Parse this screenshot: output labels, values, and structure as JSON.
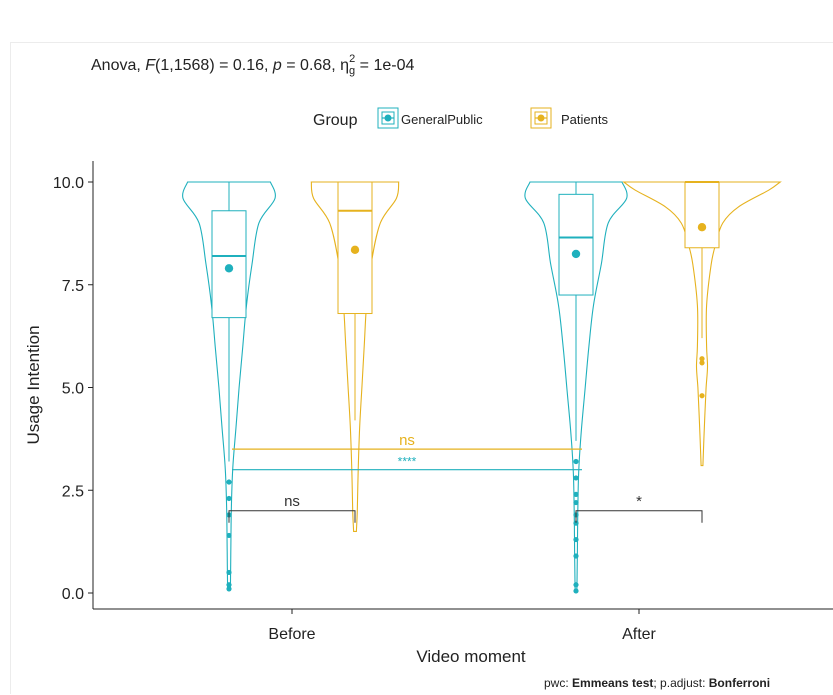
{
  "subtitle": {
    "prefix": "Anova, ",
    "F": "F",
    "df": "(1,1568) = 0.16, ",
    "p": "p",
    "pval": " = 0.68, ",
    "eta": "η",
    "eta_sub": "g",
    "eta_sup": "2",
    "eta_val": " = 1e-04"
  },
  "caption": {
    "prefix": "pwc: ",
    "method": "Emmeans test",
    "mid": "; p.adjust: ",
    "adjust": "Bonferroni"
  },
  "colors": {
    "GeneralPublic": "#1fb0bd",
    "Patients": "#e6b21e",
    "bracket": "#333333"
  },
  "chart_data": {
    "type": "violin",
    "xlabel": "Video moment",
    "ylabel": "Usage Intention",
    "categories": [
      "Before",
      "After"
    ],
    "ylim": [
      0,
      10
    ],
    "yticks": [
      "0.0",
      "2.5",
      "5.0",
      "7.5",
      "10.0"
    ],
    "legend": {
      "title": "Group",
      "position": "top",
      "entries": [
        "GeneralPublic",
        "Patients"
      ]
    },
    "grid": false,
    "series": [
      {
        "name": "GeneralPublic",
        "color": "#1fb0bd",
        "groups": [
          {
            "category": "Before",
            "mean": 7.9,
            "box": {
              "q1": 6.7,
              "median": 8.2,
              "q3": 9.3,
              "whisker_low": 3.2,
              "whisker_high": 10.0
            },
            "outliers": [
              2.7,
              2.3,
              1.9,
              1.4,
              0.5,
              0.2,
              0.1
            ],
            "violin": [
              [
                10.0,
                0.9
              ],
              [
                9.6,
                1.0
              ],
              [
                9.0,
                0.65
              ],
              [
                8.0,
                0.5
              ],
              [
                7.0,
                0.38
              ],
              [
                6.0,
                0.3
              ],
              [
                5.0,
                0.22
              ],
              [
                4.0,
                0.15
              ],
              [
                3.0,
                0.08
              ],
              [
                2.0,
                0.05
              ],
              [
                1.0,
                0.04
              ],
              [
                0.1,
                0.03
              ]
            ]
          },
          {
            "category": "After",
            "mean": 8.25,
            "box": {
              "q1": 7.25,
              "median": 8.65,
              "q3": 9.7,
              "whisker_low": 3.7,
              "whisker_high": 10.0
            },
            "outliers": [
              3.2,
              2.8,
              2.4,
              2.2,
              1.9,
              1.7,
              1.3,
              0.9,
              0.2,
              0.05
            ],
            "violin": [
              [
                10.0,
                1.0
              ],
              [
                9.6,
                1.1
              ],
              [
                9.0,
                0.7
              ],
              [
                8.0,
                0.55
              ],
              [
                7.0,
                0.38
              ],
              [
                6.0,
                0.28
              ],
              [
                5.0,
                0.2
              ],
              [
                4.0,
                0.12
              ],
              [
                3.0,
                0.06
              ],
              [
                2.0,
                0.04
              ],
              [
                1.0,
                0.03
              ],
              [
                0.05,
                0.02
              ]
            ]
          }
        ]
      },
      {
        "name": "Patients",
        "color": "#e6b21e",
        "groups": [
          {
            "category": "Before",
            "mean": 8.35,
            "box": {
              "q1": 6.8,
              "median": 9.3,
              "q3": 10.0,
              "whisker_low": 4.2,
              "whisker_high": 10.0
            },
            "outliers": [],
            "violin": [
              [
                10.0,
                0.95
              ],
              [
                9.6,
                0.9
              ],
              [
                9.0,
                0.55
              ],
              [
                8.0,
                0.35
              ],
              [
                7.0,
                0.25
              ],
              [
                6.0,
                0.2
              ],
              [
                5.0,
                0.15
              ],
              [
                4.0,
                0.1
              ],
              [
                3.0,
                0.07
              ],
              [
                2.0,
                0.05
              ],
              [
                1.5,
                0.03
              ]
            ]
          },
          {
            "category": "After",
            "mean": 8.9,
            "box": {
              "q1": 8.4,
              "median": 10.0,
              "q3": 10.0,
              "whisker_low": 6.2,
              "whisker_high": 10.0
            },
            "outliers": [
              5.7,
              5.6,
              4.8
            ],
            "violin": [
              [
                10.0,
                1.7
              ],
              [
                9.8,
                1.45
              ],
              [
                9.4,
                0.8
              ],
              [
                9.0,
                0.45
              ],
              [
                8.5,
                0.3
              ],
              [
                8.0,
                0.2
              ],
              [
                7.0,
                0.1
              ],
              [
                6.0,
                0.1
              ],
              [
                5.5,
                0.12
              ],
              [
                5.0,
                0.09
              ],
              [
                4.3,
                0.06
              ],
              [
                3.1,
                0.02
              ]
            ]
          }
        ]
      }
    ],
    "annotations": [
      {
        "type": "bracket",
        "from": "Before",
        "to": "Before",
        "from_group": "GeneralPublic",
        "to_group": "Patients",
        "y": 2.0,
        "label": "ns",
        "color": "#333333"
      },
      {
        "type": "bracket",
        "from": "After",
        "to": "After",
        "from_group": "GeneralPublic",
        "to_group": "Patients",
        "y": 2.0,
        "label": "*",
        "color": "#333333"
      },
      {
        "type": "line",
        "from": "Before",
        "to": "After",
        "y": 3.5,
        "label": "ns",
        "color": "#e6b21e"
      },
      {
        "type": "line",
        "from": "Before",
        "to": "After",
        "y": 3.0,
        "label": "****",
        "color": "#1fb0bd"
      }
    ]
  }
}
